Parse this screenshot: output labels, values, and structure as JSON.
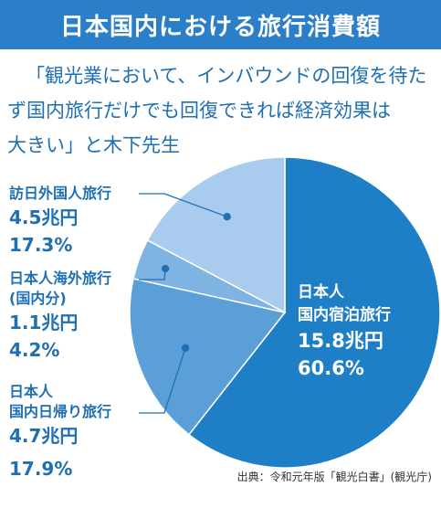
{
  "header": {
    "title": "日本国内における旅行消費額"
  },
  "quote": {
    "lines": [
      "「観光業において、インバウンドの回復を待た",
      "ず国内旅行だけでも回復できれば経済効果は",
      "大きい」と木下先生"
    ]
  },
  "chart_data": {
    "type": "pie",
    "title": "日本国内における旅行消費額",
    "unit": "兆円",
    "slices": [
      {
        "name": "日本人国内宿泊旅行",
        "label_lines": [
          "日本人",
          "国内宿泊旅行"
        ],
        "value": 15.8,
        "value_label": "15.8兆円",
        "percent": 60.6,
        "percent_label": "60.6%",
        "color": "#1f7fc6"
      },
      {
        "name": "日本人国内日帰り旅行",
        "label_lines": [
          "日本人",
          "国内日帰り旅行"
        ],
        "value": 4.7,
        "value_label": "4.7兆円",
        "percent": 17.9,
        "percent_label": "17.9%",
        "color": "#5b9fd9"
      },
      {
        "name": "日本人海外旅行(国内分)",
        "label_lines": [
          "日本人海外旅行",
          "(国内分)"
        ],
        "value": 1.1,
        "value_label": "1.1兆円",
        "percent": 4.2,
        "percent_label": "4.2%",
        "color": "#7fb4e2"
      },
      {
        "name": "訪日外国人旅行",
        "label_lines": [
          "訪日外国人旅行"
        ],
        "value": 4.5,
        "value_label": "4.5兆円",
        "percent": 17.3,
        "percent_label": "17.3%",
        "color": "#a9cbee"
      }
    ]
  },
  "source": "出典：令和元年版「観光白書」(観光庁)"
}
